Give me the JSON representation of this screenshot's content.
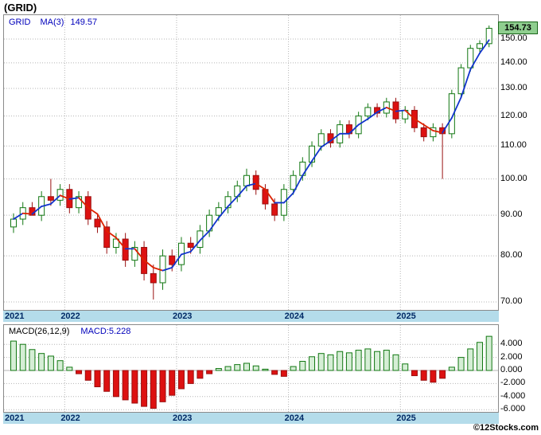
{
  "title": "(GRID)",
  "main_chart": {
    "legend_symbol": "GRID",
    "legend_ma": "MA(3)",
    "legend_ma_value": "149.57",
    "last_price": "154.73"
  },
  "macd": {
    "label": "MACD(26,12,9)",
    "value": "MACD:5.228"
  },
  "footer": {
    "watermark": "©12Stocks.com"
  },
  "colors": {
    "up_candle_fill": "#ffffff",
    "up_candle_stroke": "#117711",
    "down_candle_fill": "#dd1111",
    "down_candle_stroke": "#991111",
    "ma_up": "#1133cc",
    "ma_down": "#dd2200",
    "macd_pos_fill": "#d6eed6",
    "macd_pos_stroke": "#117711",
    "macd_neg_fill": "#dd1111",
    "macd_neg_stroke": "#991111",
    "axis_band": "#b4dcea",
    "last_price_bg": "#8fce8f",
    "grid": "#b5b5b5"
  },
  "chart_data": [
    {
      "type": "candlestick",
      "title": "(GRID) monthly price with MA(3) overlay",
      "scale": "log",
      "x": [
        "2021-07",
        "2021-08",
        "2021-09",
        "2021-10",
        "2021-11",
        "2021-12",
        "2022-01",
        "2022-02",
        "2022-03",
        "2022-04",
        "2022-05",
        "2022-06",
        "2022-07",
        "2022-08",
        "2022-09",
        "2022-10",
        "2022-11",
        "2022-12",
        "2023-01",
        "2023-02",
        "2023-03",
        "2023-04",
        "2023-05",
        "2023-06",
        "2023-07",
        "2023-08",
        "2023-09",
        "2023-10",
        "2023-11",
        "2023-12",
        "2024-01",
        "2024-02",
        "2024-03",
        "2024-04",
        "2024-05",
        "2024-06",
        "2024-07",
        "2024-08",
        "2024-09",
        "2024-10",
        "2024-11",
        "2024-12",
        "2025-01",
        "2025-02",
        "2025-03",
        "2025-04",
        "2025-05",
        "2025-06",
        "2025-07",
        "2025-08",
        "2025-09",
        "2025-10"
      ],
      "open": [
        87,
        89,
        92,
        90,
        95,
        94,
        97,
        92,
        95,
        89,
        87,
        82,
        84,
        79,
        82,
        76,
        74,
        80,
        78,
        83,
        82,
        86,
        90,
        92,
        95,
        98,
        101,
        97,
        93,
        90,
        97,
        101,
        105,
        110,
        114,
        111,
        117,
        114,
        120,
        123,
        121,
        125,
        119,
        122,
        116,
        113,
        116,
        114,
        128,
        138,
        146,
        148
      ],
      "high": [
        90.5,
        93.5,
        93.5,
        96.5,
        100,
        98.5,
        98.5,
        96.5,
        96.5,
        90.5,
        88.5,
        85.5,
        85.5,
        83.5,
        83.5,
        78,
        81.5,
        81.5,
        84.5,
        84.5,
        87.5,
        91.5,
        93.5,
        96.5,
        99.5,
        103,
        102.5,
        98.5,
        94.5,
        98.5,
        102.5,
        106.5,
        111.5,
        115.5,
        115.5,
        118.5,
        118.5,
        121.5,
        124.5,
        124.5,
        126.5,
        126.5,
        123.5,
        123.5,
        117.5,
        117.5,
        117.5,
        129.5,
        139.5,
        147.5,
        149.5,
        156
      ],
      "low": [
        85.5,
        87.5,
        90.5,
        88.5,
        92.5,
        92.5,
        90.5,
        90.5,
        87.5,
        85.5,
        80.5,
        80.5,
        77.5,
        77.5,
        74.5,
        70.5,
        72.5,
        76.5,
        76.5,
        80.5,
        80.5,
        84.5,
        88.5,
        90.5,
        93.5,
        96.5,
        95.5,
        91.5,
        88.5,
        88.5,
        95.5,
        99.5,
        103.5,
        108.5,
        109.5,
        109.5,
        112.5,
        112.5,
        118.5,
        119.5,
        119.5,
        117.5,
        117.5,
        114.5,
        111.5,
        111.5,
        100,
        112.5,
        126.5,
        136.5,
        144.5,
        146.5
      ],
      "close": [
        89,
        92,
        90,
        95,
        94,
        97,
        92,
        95,
        89,
        87,
        82,
        84,
        79,
        82,
        76,
        74,
        80,
        78,
        83,
        82,
        86,
        90,
        92,
        95,
        98,
        101,
        97,
        93,
        90,
        97,
        101,
        105,
        110,
        114,
        111,
        117,
        114,
        120,
        123,
        121,
        125,
        119,
        122,
        116,
        113,
        116,
        114,
        128,
        138,
        146,
        148,
        154.73
      ],
      "overlays": [
        {
          "name": "MA(3)",
          "period": 3,
          "last_value": 149.57,
          "style": "blue-when-rising-red-when-falling"
        }
      ],
      "last_price": 154.73,
      "y_ticks": [
        {
          "value": 150,
          "label": "150.00"
        },
        {
          "value": 140,
          "label": "140.00"
        },
        {
          "value": 130,
          "label": "130.00"
        },
        {
          "value": 120,
          "label": "120.00"
        },
        {
          "value": 110,
          "label": "110.00"
        },
        {
          "value": 100,
          "label": "100.00"
        },
        {
          "value": 90,
          "label": "90.00"
        },
        {
          "value": 80,
          "label": "80.00"
        },
        {
          "value": 70,
          "label": "70.00"
        }
      ],
      "ylim": [
        68,
        158
      ],
      "x_ticks": [
        {
          "index": 0,
          "label": "2021"
        },
        {
          "index": 6,
          "label": "2022"
        },
        {
          "index": 18,
          "label": "2023"
        },
        {
          "index": 30,
          "label": "2024"
        },
        {
          "index": 42,
          "label": "2025"
        }
      ],
      "grid": true,
      "legend_position": "top-left"
    },
    {
      "type": "bar",
      "title": "MACD(26,12,9) histogram",
      "values": [
        4.5,
        4.0,
        3.2,
        2.6,
        2.2,
        1.5,
        0.5,
        -0.5,
        -1.5,
        -2.5,
        -3.2,
        -4.0,
        -4.5,
        -5.0,
        -5.5,
        -5.8,
        -4.8,
        -3.8,
        -2.8,
        -2.0,
        -1.2,
        -0.5,
        0.3,
        0.6,
        0.9,
        1.1,
        0.7,
        0.2,
        -0.6,
        -0.9,
        0.6,
        1.4,
        2.1,
        2.6,
        2.4,
        2.9,
        2.7,
        3.1,
        3.3,
        2.9,
        3.1,
        2.4,
        1.0,
        -0.8,
        -1.5,
        -1.8,
        -1.2,
        0.5,
        2.0,
        3.3,
        4.3,
        5.228
      ],
      "last_value": 5.228,
      "y_ticks": [
        {
          "value": 4,
          "label": "4.000"
        },
        {
          "value": 2,
          "label": "2.000"
        },
        {
          "value": 0,
          "label": "0.000"
        },
        {
          "value": -2,
          "label": "-2.000"
        },
        {
          "value": -4,
          "label": "-4.000"
        },
        {
          "value": -6,
          "label": "-6.000"
        }
      ],
      "ylim": [
        -6.4,
        5.6
      ],
      "x_ticks": [
        {
          "index": 0,
          "label": "2021"
        },
        {
          "index": 6,
          "label": "2022"
        },
        {
          "index": 18,
          "label": "2023"
        },
        {
          "index": 30,
          "label": "2024"
        },
        {
          "index": 42,
          "label": "2025"
        }
      ],
      "grid": true
    }
  ]
}
